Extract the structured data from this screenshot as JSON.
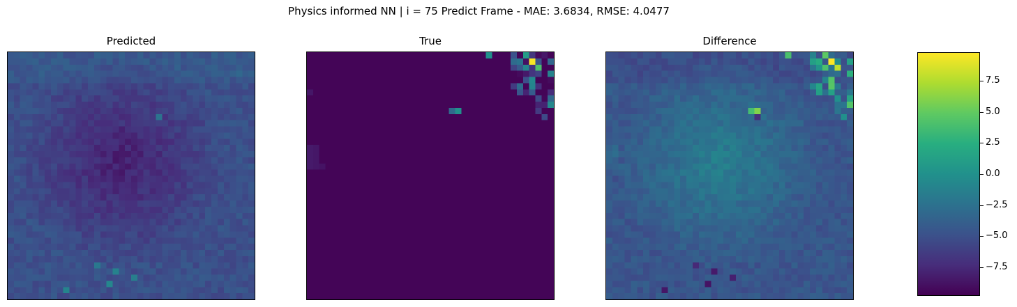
{
  "chart_data": {
    "type": "heatmap",
    "title": "Physics informed NN | i = 75 Predict Frame - MAE: 3.6834, RMSE: 4.0477",
    "colormap": "viridis",
    "color_range": [
      -9.8,
      9.8
    ],
    "grid_size": 40,
    "colorbar_ticks": [
      {
        "value": 7.5,
        "label": "7.5"
      },
      {
        "value": 5.0,
        "label": "5.0"
      },
      {
        "value": 2.5,
        "label": "2.5"
      },
      {
        "value": 0.0,
        "label": "0.0"
      },
      {
        "value": -2.5,
        "label": "−2.5"
      },
      {
        "value": -5.0,
        "label": "−5.0"
      },
      {
        "value": -7.5,
        "label": "−7.5"
      }
    ],
    "panels": [
      {
        "title": "Predicted"
      },
      {
        "title": "True"
      },
      {
        "title": "Difference"
      }
    ],
    "true_hotspots": [
      {
        "row": 1,
        "col": 36,
        "value": 9.6
      },
      {
        "row": 2,
        "col": 37,
        "value": 4
      },
      {
        "row": 0,
        "col": 35,
        "value": 1
      },
      {
        "row": 1,
        "col": 33,
        "value": -3
      },
      {
        "row": 0,
        "col": 29,
        "value": 0
      },
      {
        "row": 9,
        "col": 24,
        "value": 0
      },
      {
        "row": 9,
        "col": 23,
        "value": -3
      }
    ]
  }
}
